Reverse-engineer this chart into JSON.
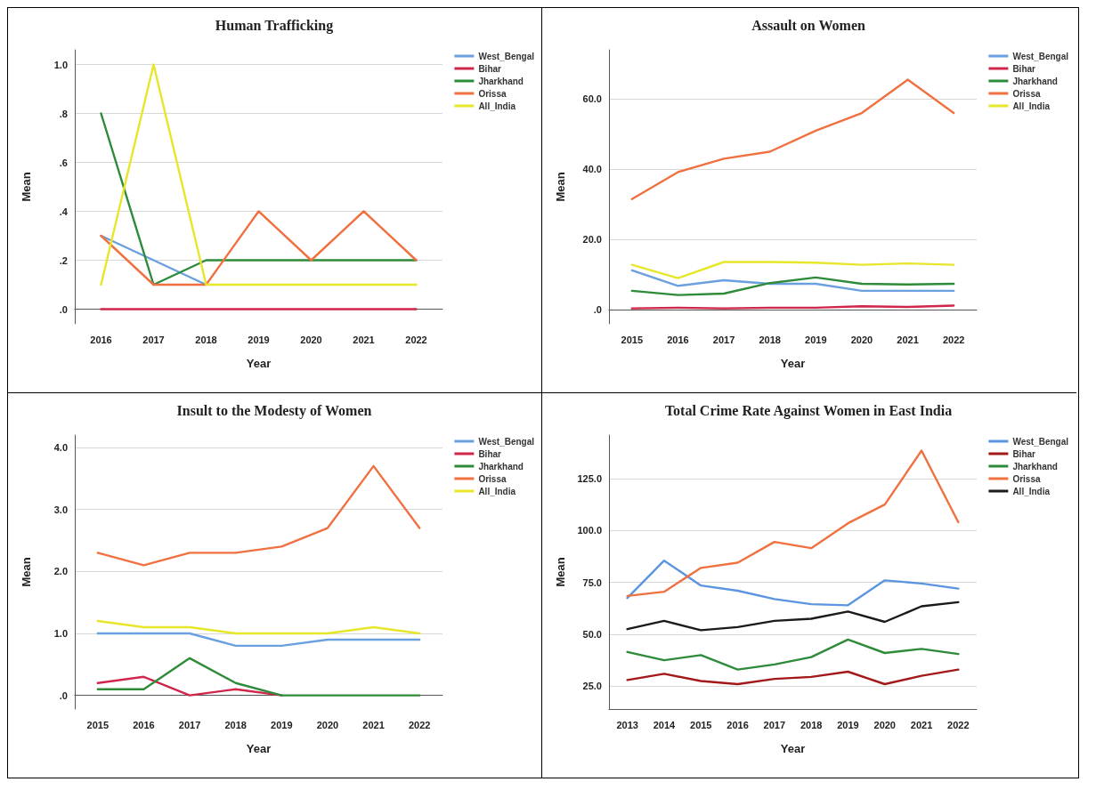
{
  "chart_data": [
    {
      "type": "line",
      "title": "Human Trafficking",
      "xlabel": "Year",
      "ylabel": "Mean",
      "categories": [
        "2016",
        "2017",
        "2018",
        "2019",
        "2020",
        "2021",
        "2022"
      ],
      "ylim": [
        -0.06,
        1.06
      ],
      "yticks": [
        {
          "value": 0,
          "label": ".0"
        },
        {
          "value": 0.2,
          "label": ".2"
        },
        {
          "value": 0.4,
          "label": ".4"
        },
        {
          "value": 0.6,
          "label": ".6"
        },
        {
          "value": 0.8,
          "label": ".8"
        },
        {
          "value": 1.0,
          "label": "1.0"
        }
      ],
      "grid": "y",
      "legend": "top right",
      "marker": "none",
      "line_style": "solid",
      "series": [
        {
          "name": "West_Bengal",
          "color": "#6a9fe0",
          "values": [
            0.3,
            0.2,
            0.1,
            null,
            null,
            null,
            null
          ]
        },
        {
          "name": "Bihar",
          "color": "#d0264a",
          "values": [
            0,
            0,
            0,
            0,
            0,
            0,
            0
          ]
        },
        {
          "name": "Jharkhand",
          "color": "#2e8b3a",
          "values": [
            0.8,
            0.1,
            0.2,
            0.2,
            0.2,
            0.2,
            0.2
          ]
        },
        {
          "name": "Orissa",
          "color": "#f07040",
          "values": [
            0.3,
            0.1,
            0.1,
            0.4,
            0.2,
            0.4,
            0.2
          ]
        },
        {
          "name": "All_India",
          "color": "#e6e62a",
          "values": [
            0.1,
            1.0,
            0.1,
            0.1,
            0.1,
            0.1,
            0.1
          ]
        }
      ]
    },
    {
      "type": "line",
      "title": "Assault on Women",
      "xlabel": "Year",
      "ylabel": "Mean",
      "categories": [
        "2015",
        "2016",
        "2017",
        "2018",
        "2019",
        "2020",
        "2021",
        "2022"
      ],
      "ylim": [
        -4,
        74
      ],
      "yticks": [
        {
          "value": 0,
          "label": ".0"
        },
        {
          "value": 20,
          "label": "20.0"
        },
        {
          "value": 40,
          "label": "40.0"
        },
        {
          "value": 60,
          "label": "60.0"
        }
      ],
      "grid": "y",
      "legend": "top right",
      "marker": "none",
      "line_style": "solid",
      "series": [
        {
          "name": "West_Bengal",
          "color": "#6a9fe0",
          "values": [
            11.2,
            6.8,
            8.4,
            7.4,
            7.4,
            5.4,
            5.4,
            5.4
          ]
        },
        {
          "name": "Bihar",
          "color": "#d0264a",
          "values": [
            0.4,
            0.6,
            0.4,
            0.6,
            0.6,
            1.0,
            0.8,
            1.2
          ]
        },
        {
          "name": "Jharkhand",
          "color": "#2e8b3a",
          "values": [
            5.4,
            4.2,
            4.6,
            7.6,
            9.2,
            7.4,
            7.2,
            7.4
          ]
        },
        {
          "name": "Orissa",
          "color": "#f07040",
          "values": [
            31.5,
            39.2,
            43,
            45,
            51,
            56,
            65.5,
            56
          ]
        },
        {
          "name": "All_India",
          "color": "#e6e62a",
          "values": [
            12.8,
            9.0,
            13.6,
            13.6,
            13.4,
            12.8,
            13.2,
            12.8
          ]
        }
      ]
    },
    {
      "type": "line",
      "title": "Insult to the Modesty of Women",
      "xlabel": "Year",
      "ylabel": "Mean",
      "categories": [
        "2015",
        "2016",
        "2017",
        "2018",
        "2019",
        "2020",
        "2021",
        "2022"
      ],
      "ylim": [
        -0.22,
        4.2
      ],
      "yticks": [
        {
          "value": 0,
          "label": ".0"
        },
        {
          "value": 1,
          "label": "1.0"
        },
        {
          "value": 2,
          "label": "2.0"
        },
        {
          "value": 3,
          "label": "3.0"
        },
        {
          "value": 4,
          "label": "4.0"
        }
      ],
      "grid": "y",
      "legend": "top right",
      "marker": "none",
      "line_style": "solid",
      "series": [
        {
          "name": "West_Bengal",
          "color": "#6a9fe0",
          "values": [
            1.0,
            1.0,
            1.0,
            0.8,
            0.8,
            0.9,
            0.9,
            0.9
          ]
        },
        {
          "name": "Bihar",
          "color": "#d0264a",
          "values": [
            0.2,
            0.3,
            0.0,
            0.1,
            0.0,
            null,
            null,
            null
          ]
        },
        {
          "name": "Jharkhand",
          "color": "#2e8b3a",
          "values": [
            0.1,
            0.1,
            0.6,
            0.2,
            0,
            0,
            0,
            0
          ]
        },
        {
          "name": "Orissa",
          "color": "#f07040",
          "values": [
            2.3,
            2.1,
            2.3,
            2.3,
            2.4,
            2.7,
            3.7,
            2.7
          ]
        },
        {
          "name": "All_India",
          "color": "#e6e62a",
          "values": [
            1.2,
            1.1,
            1.1,
            1.0,
            1.0,
            1.0,
            1.1,
            1.0
          ]
        }
      ]
    },
    {
      "type": "line",
      "title": "Total Crime Rate Against Women in East India",
      "xlabel": "Year",
      "ylabel": "Mean",
      "categories": [
        "2013",
        "2014",
        "2015",
        "2016",
        "2017",
        "2018",
        "2019",
        "2020",
        "2021",
        "2022"
      ],
      "ylim": [
        14,
        146
      ],
      "yticks": [
        {
          "value": 25,
          "label": "25.0"
        },
        {
          "value": 50,
          "label": "50.0"
        },
        {
          "value": 75,
          "label": "75.0"
        },
        {
          "value": 100,
          "label": "100.0"
        },
        {
          "value": 125,
          "label": "125.0"
        }
      ],
      "grid": "y",
      "legend": "top right",
      "marker": "none",
      "line_style": "solid",
      "series": [
        {
          "name": "West_Bengal",
          "color": "#5b95e0",
          "values": [
            67.5,
            85.5,
            73.5,
            71,
            67,
            64.5,
            64,
            76,
            74.5,
            72
          ]
        },
        {
          "name": "Bihar",
          "color": "#a31818",
          "values": [
            28,
            31,
            27.5,
            26,
            28.5,
            29.5,
            32,
            26,
            30,
            33
          ]
        },
        {
          "name": "Jharkhand",
          "color": "#2e8b3a",
          "values": [
            41.5,
            37.5,
            40,
            33,
            35.5,
            39,
            47.5,
            41,
            43,
            40.5
          ]
        },
        {
          "name": "Orissa",
          "color": "#f07040",
          "values": [
            68.5,
            70.5,
            82,
            84.5,
            94.5,
            91.5,
            103.5,
            112.5,
            138.5,
            104
          ]
        },
        {
          "name": "All_India",
          "color": "#1a1a1a",
          "values": [
            52.5,
            56.5,
            52,
            53.5,
            56.5,
            57.5,
            61,
            56,
            63.5,
            65.5
          ]
        }
      ]
    }
  ]
}
